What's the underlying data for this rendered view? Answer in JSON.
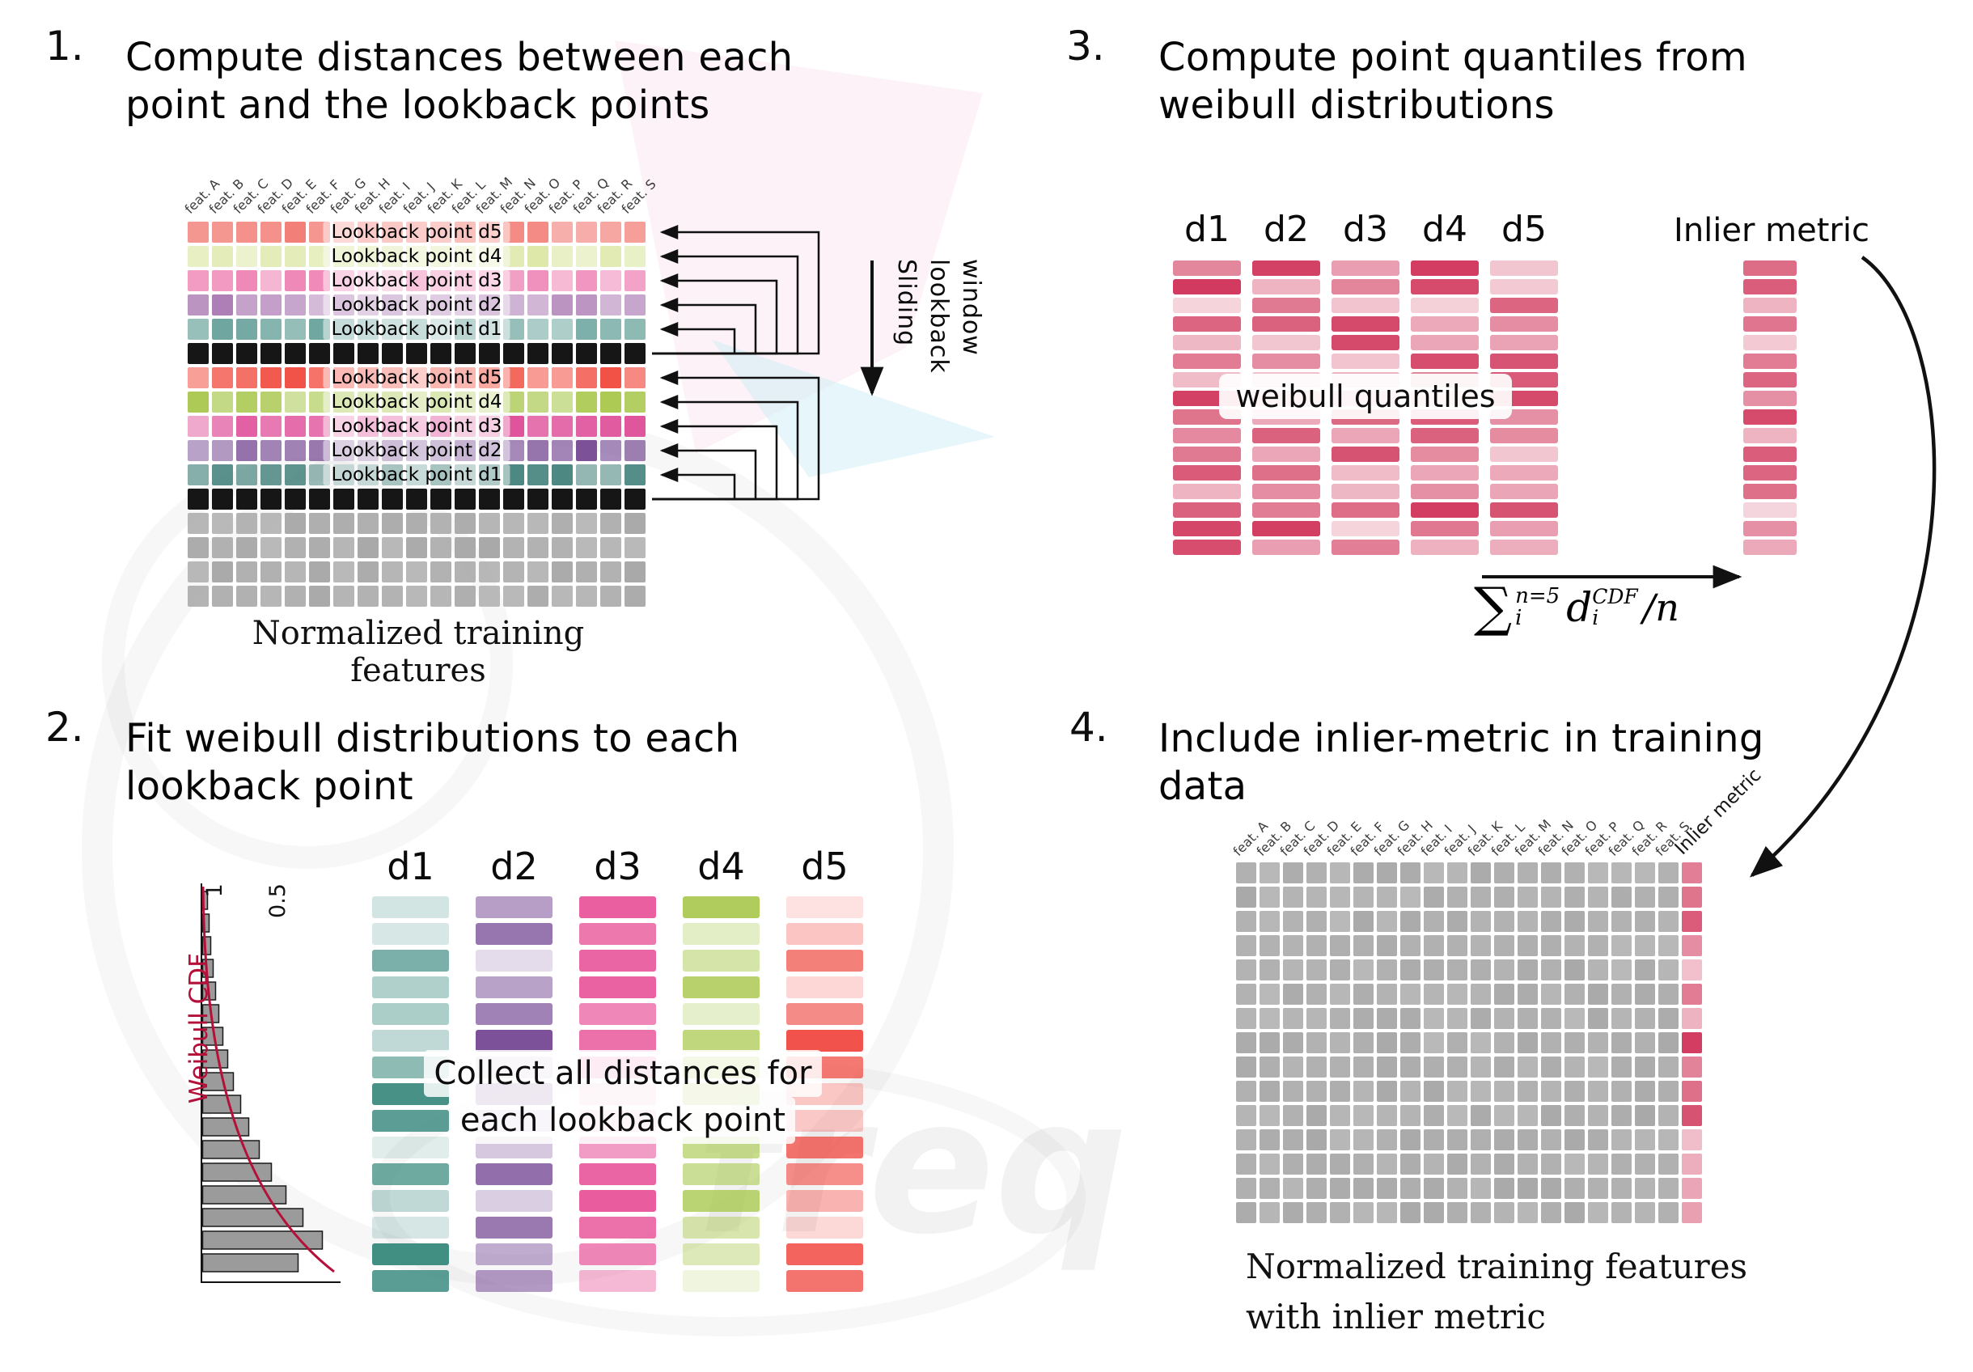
{
  "watermark": {
    "text": "freq"
  },
  "panel1": {
    "number": "1.",
    "title": [
      "Compute distances between each",
      "point and the lookback points"
    ],
    "caption": "Normalized training features",
    "sliding_lines": [
      "Sliding",
      "lookback",
      "window"
    ],
    "feature_labels": [
      "feat. A",
      "feat. B",
      "feat. C",
      "feat. D",
      "feat. E",
      "feat. F",
      "feat. G",
      "feat. H",
      "feat. I",
      "feat. J",
      "feat. K",
      "feat. L",
      "feat. M",
      "feat. N",
      "feat. O",
      "feat. P",
      "feat. Q",
      "feat. R",
      "feat. S"
    ],
    "grid": {
      "cols": 19,
      "rows": [
        {
          "type": "lookback",
          "label": "Lookback point d5",
          "color": "#f2766e"
        },
        {
          "type": "lookback",
          "label": "Lookback point d4",
          "color": "#dde8a8"
        },
        {
          "type": "lookback",
          "label": "Lookback point d3",
          "color": "#ee7fb2"
        },
        {
          "type": "lookback",
          "label": "Lookback point d2",
          "color": "#ad7cb5"
        },
        {
          "type": "lookback",
          "label": "Lookback point d1",
          "color": "#6aa49d"
        },
        {
          "type": "current",
          "color": "#161616"
        },
        {
          "type": "lookback",
          "label": "Lookback point d5",
          "color": "#f25044"
        },
        {
          "type": "lookback",
          "label": "Lookback point d4",
          "color": "#a9c84e"
        },
        {
          "type": "lookback",
          "label": "Lookback point d3",
          "color": "#e0549c"
        },
        {
          "type": "lookback",
          "label": "Lookback point d2",
          "color": "#7a4f96"
        },
        {
          "type": "lookback",
          "label": "Lookback point d1",
          "color": "#3c7c76"
        },
        {
          "type": "current",
          "color": "#161616"
        },
        {
          "type": "plain",
          "color": "#a9a9a9"
        },
        {
          "type": "plain",
          "color": "#a9a9a9"
        },
        {
          "type": "plain",
          "color": "#a9a9a9"
        },
        {
          "type": "plain",
          "color": "#a9a9a9"
        }
      ]
    }
  },
  "panel2": {
    "number": "2.",
    "title": [
      "Fit weibull distributions to each",
      "lookback point"
    ],
    "overlay": [
      "Collect all distances for",
      "each lookback point"
    ],
    "chart": {
      "ylabel": "Weibull CDF",
      "ticks": [
        "1",
        "0.5"
      ],
      "bar_lengths": [
        6,
        8,
        10,
        13,
        16,
        20,
        25,
        31,
        38,
        47,
        57,
        70,
        85,
        103,
        124,
        148,
        118
      ],
      "curve_color": "#b5103a",
      "bar_fill": "#9b9b9b"
    },
    "columns": [
      {
        "label": "d1",
        "color": "#3f8d82"
      },
      {
        "label": "d2",
        "color": "#7a4f98"
      },
      {
        "label": "d3",
        "color": "#e8569a"
      },
      {
        "label": "d4",
        "color": "#a9c84e"
      },
      {
        "label": "d5",
        "color": "#f04a42"
      }
    ],
    "bars_per_column": 15
  },
  "panel3": {
    "number": "3.",
    "title": [
      "Compute point quantiles from",
      "weibull distributions"
    ],
    "column_labels": [
      "d1",
      "d2",
      "d3",
      "d4",
      "d5"
    ],
    "overlay": "weibull quantiles",
    "inlier_label": "Inlier metric",
    "bar_color": "#d23b5f",
    "bars_per_column": 16,
    "formula": {
      "sum": "∑",
      "sum_sup": "n=5",
      "sum_sub": "i",
      "var": "d",
      "var_sup": "CDF",
      "var_sub": "i",
      "divisor": "/n"
    }
  },
  "panel4": {
    "number": "4.",
    "title": [
      "Include inlier-metric in training",
      "data"
    ],
    "caption": [
      "Normalized training features",
      "with inlier metric"
    ],
    "feature_labels": [
      "feat. A",
      "feat. B",
      "feat. C",
      "feat. D",
      "feat. E",
      "feat. F",
      "feat. G",
      "feat. H",
      "feat. I",
      "feat. J",
      "feat. K",
      "feat. L",
      "feat. M",
      "feat. N",
      "feat. O",
      "feat. P",
      "feat. Q",
      "feat. R",
      "feat. S"
    ],
    "inlier_col_label": "Inlier metric",
    "grid": {
      "cols": 20,
      "rows": 15,
      "cell_color": "#a9a9a9",
      "inlier_color": "#d23b5f"
    }
  }
}
